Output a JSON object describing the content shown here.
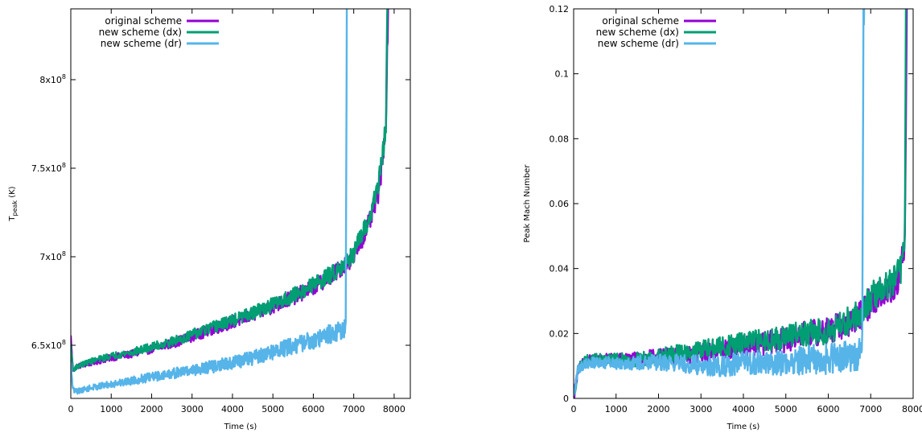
{
  "colors": {
    "original": "#9400d3",
    "dx": "#009e73",
    "dr": "#56b4e9"
  },
  "chart_data": [
    {
      "type": "line",
      "xlabel": "Time (s)",
      "ylabel_main": "T",
      "ylabel_sub": "peak",
      "ylabel_unit": " (K)",
      "xlim": [
        0,
        8400
      ],
      "ylim": [
        620000000,
        840000000
      ],
      "xticks": [
        "0",
        "1000",
        "2000",
        "3000",
        "4000",
        "5000",
        "6000",
        "7000",
        "8000"
      ],
      "yticks": [
        {
          "value": 650000000,
          "mantissa": "6.5x10",
          "exp": "8"
        },
        {
          "value": 700000000,
          "mantissa": "7x10",
          "exp": "8"
        },
        {
          "value": 750000000,
          "mantissa": "7.5x10",
          "exp": "8"
        },
        {
          "value": 800000000,
          "mantissa": "8x10",
          "exp": "8"
        }
      ],
      "legend": [
        "original scheme",
        "new scheme (dx)",
        "new scheme (dr)"
      ],
      "legend_position": "top-left",
      "grid": false,
      "series": [
        {
          "name": "original scheme",
          "color_key": "original",
          "x": [
            0,
            50,
            150,
            500,
            1000,
            1500,
            2000,
            2500,
            3000,
            3500,
            4000,
            4500,
            5000,
            5500,
            6000,
            6500,
            6800,
            7000,
            7200,
            7400,
            7600,
            7700,
            7800,
            7850
          ],
          "y": [
            655000000,
            636000000,
            638000000,
            640000000,
            643000000,
            645000000,
            648000000,
            651000000,
            655000000,
            659000000,
            663000000,
            667000000,
            672000000,
            677000000,
            683000000,
            690000000,
            696000000,
            700000000,
            710000000,
            720000000,
            735000000,
            750000000,
            780000000,
            840000000
          ]
        },
        {
          "name": "new scheme (dx)",
          "color_key": "dx",
          "x": [
            0,
            50,
            150,
            500,
            1000,
            1500,
            2000,
            2500,
            3000,
            3500,
            4000,
            4500,
            5000,
            5500,
            6000,
            6500,
            6800,
            7000,
            7200,
            7400,
            7600,
            7700,
            7800,
            7830
          ],
          "y": [
            650000000,
            636000000,
            638000000,
            641000000,
            644000000,
            646000000,
            649000000,
            652000000,
            656000000,
            660000000,
            664000000,
            668000000,
            673000000,
            678000000,
            684000000,
            691000000,
            697000000,
            702000000,
            712000000,
            722000000,
            740000000,
            755000000,
            775000000,
            840000000
          ]
        },
        {
          "name": "new scheme (dr)",
          "color_key": "dr",
          "x": [
            0,
            50,
            150,
            500,
            1000,
            1500,
            2000,
            2500,
            3000,
            3500,
            4000,
            4500,
            5000,
            5500,
            6000,
            6500,
            6800,
            6830,
            6850
          ],
          "y": [
            640000000,
            625000000,
            624000000,
            626000000,
            628000000,
            630000000,
            632000000,
            634000000,
            636000000,
            638000000,
            640000000,
            643000000,
            646000000,
            650000000,
            653000000,
            657000000,
            660000000,
            840000000,
            840000000
          ]
        }
      ]
    },
    {
      "type": "line",
      "xlabel": "Time (s)",
      "ylabel": "Peak Mach Number",
      "xlim": [
        0,
        8000
      ],
      "ylim": [
        0,
        0.12
      ],
      "xticks": [
        "0",
        "1000",
        "2000",
        "3000",
        "4000",
        "5000",
        "6000",
        "7000",
        "8000"
      ],
      "yticks": [
        {
          "value": 0,
          "label": "0"
        },
        {
          "value": 0.02,
          "label": "0.02"
        },
        {
          "value": 0.04,
          "label": "0.04"
        },
        {
          "value": 0.06,
          "label": "0.06"
        },
        {
          "value": 0.08,
          "label": "0.08"
        },
        {
          "value": 0.1,
          "label": "0.1"
        },
        {
          "value": 0.12,
          "label": "0.12"
        }
      ],
      "legend": [
        "original scheme",
        "new scheme (dx)",
        "new scheme (dr)"
      ],
      "legend_position": "top-left",
      "grid": false,
      "series": [
        {
          "name": "original scheme",
          "color_key": "original",
          "x": [
            0,
            100,
            300,
            500,
            1000,
            1500,
            2000,
            2500,
            3000,
            3500,
            4000,
            4500,
            5000,
            5500,
            6000,
            6500,
            6800,
            7000,
            7200,
            7400,
            7600,
            7700,
            7800,
            7850
          ],
          "y": [
            0,
            0.009,
            0.012,
            0.012,
            0.012,
            0.012,
            0.013,
            0.013,
            0.014,
            0.015,
            0.016,
            0.017,
            0.018,
            0.02,
            0.021,
            0.023,
            0.026,
            0.03,
            0.032,
            0.033,
            0.036,
            0.04,
            0.045,
            0.12
          ]
        },
        {
          "name": "new scheme (dx)",
          "color_key": "dx",
          "x": [
            0,
            100,
            300,
            500,
            1000,
            1500,
            2000,
            2500,
            3000,
            3500,
            4000,
            4500,
            5000,
            5500,
            6000,
            6500,
            6800,
            7000,
            7200,
            7400,
            7600,
            7700,
            7800,
            7830
          ],
          "y": [
            0,
            0.009,
            0.012,
            0.012,
            0.012,
            0.012,
            0.013,
            0.014,
            0.015,
            0.016,
            0.017,
            0.018,
            0.019,
            0.02,
            0.021,
            0.024,
            0.027,
            0.031,
            0.033,
            0.035,
            0.037,
            0.04,
            0.045,
            0.12
          ]
        },
        {
          "name": "new scheme (dr)",
          "color_key": "dr",
          "x": [
            0,
            100,
            300,
            500,
            1000,
            1500,
            2000,
            2500,
            3000,
            3500,
            4000,
            4500,
            5000,
            5500,
            6000,
            6300,
            6500,
            6800,
            6830,
            6850
          ],
          "y": [
            0,
            0.009,
            0.011,
            0.011,
            0.011,
            0.011,
            0.011,
            0.011,
            0.01,
            0.01,
            0.011,
            0.011,
            0.011,
            0.012,
            0.012,
            0.013,
            0.013,
            0.014,
            0.12,
            0.12
          ]
        }
      ]
    }
  ]
}
